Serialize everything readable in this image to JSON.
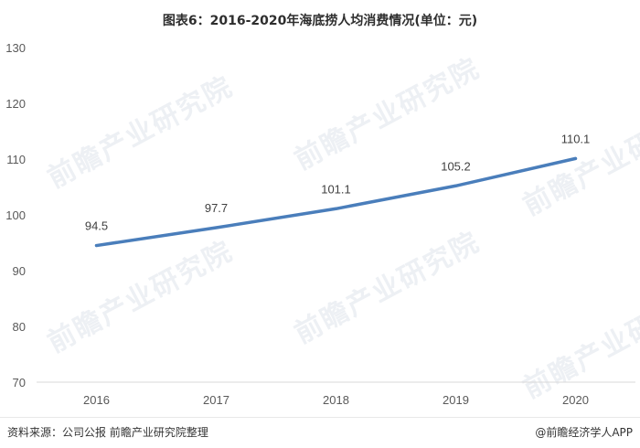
{
  "title": "图表6：2016-2020年海底捞人均消费情况(单位：元)",
  "watermark": "前瞻产业研究院",
  "footer": {
    "source": "资料来源：公司公报 前瞻产业研究院整理",
    "brand": "@前瞻经济学人APP"
  },
  "chart_data": {
    "type": "line",
    "title": "图表6：2016-2020年海底捞人均消费情况(单位：元)",
    "categories": [
      "2016",
      "2017",
      "2018",
      "2019",
      "2020"
    ],
    "series": [
      {
        "values": [
          94.5,
          97.7,
          101.1,
          105.2,
          110.1
        ],
        "color": "#4a7ebb"
      }
    ],
    "data_labels": [
      "94.5",
      "97.7",
      "101.1",
      "105.2",
      "110.1"
    ],
    "yticks": [
      "70",
      "80",
      "90",
      "100",
      "110",
      "120",
      "130"
    ],
    "ylim": [
      70,
      130
    ],
    "grid": false,
    "legend": "none"
  }
}
